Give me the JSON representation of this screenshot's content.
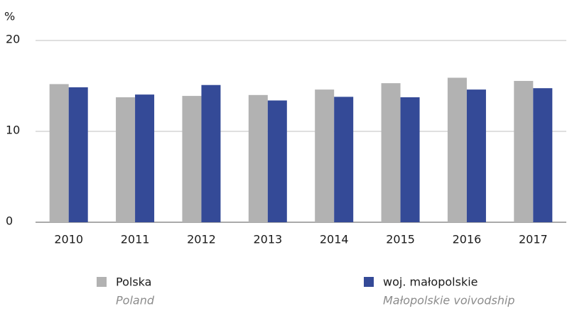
{
  "chart_data": {
    "type": "bar",
    "y_label": "%",
    "categories": [
      "2010",
      "2011",
      "2012",
      "2013",
      "2014",
      "2015",
      "2016",
      "2017"
    ],
    "series": [
      {
        "name": "Polska",
        "name_en": "Poland",
        "color": "#b2b2b2",
        "values": [
          15.2,
          13.75,
          13.9,
          14.0,
          14.6,
          15.3,
          15.9,
          15.55
        ]
      },
      {
        "name": "woj. małopolskie",
        "name_en": "Małopolskie voivodship",
        "color": "#344a97",
        "values": [
          14.85,
          14.05,
          15.1,
          13.4,
          13.8,
          13.75,
          14.6,
          14.75
        ]
      }
    ],
    "ylim": [
      0,
      20
    ],
    "yticks": [
      0,
      10,
      20
    ],
    "grid": true
  }
}
